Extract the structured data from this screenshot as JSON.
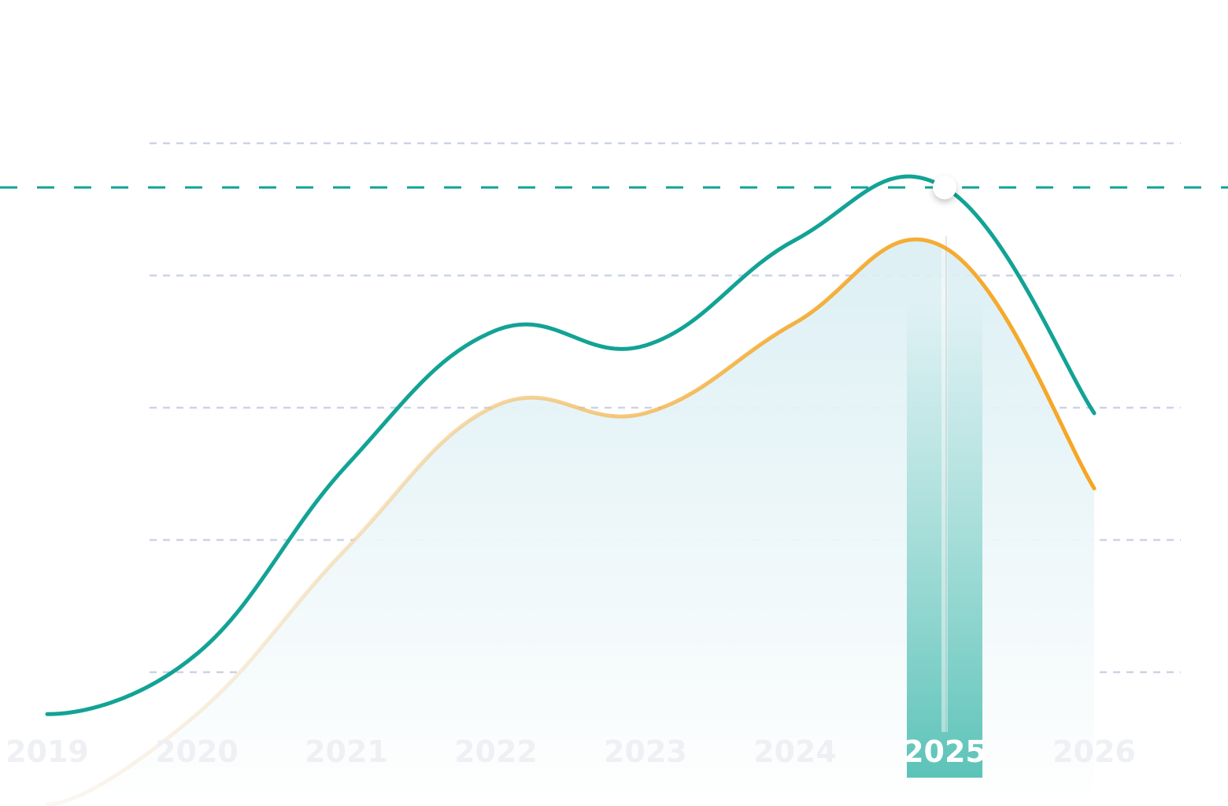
{
  "chart_data": {
    "type": "line",
    "x": [
      "2019",
      "2020",
      "2021",
      "2022",
      "2023",
      "2024",
      "2025",
      "2026"
    ],
    "series": [
      {
        "values": [
          12,
          20,
          45,
          63,
          61,
          75,
          82,
          52
        ]
      },
      {
        "values": [
          0,
          12,
          34,
          53,
          52,
          64,
          74,
          42
        ]
      }
    ],
    "reference_line": 82,
    "highlighted_x": "2025",
    "ylim": [
      0,
      110
    ],
    "grid": true,
    "legend": "none"
  },
  "colors": {
    "series_1": "#12a395",
    "series_2_start": "#efe6d7",
    "series_2_end": "#f5a623",
    "area_top": "#d9eef3",
    "area_bottom": "#ffffff",
    "grid": "#c7cfe3",
    "reference": "#12a395",
    "highlight_bar": "#5cc3b8"
  },
  "icons": {
    "highlight_marker": "circle-marker-icon"
  }
}
